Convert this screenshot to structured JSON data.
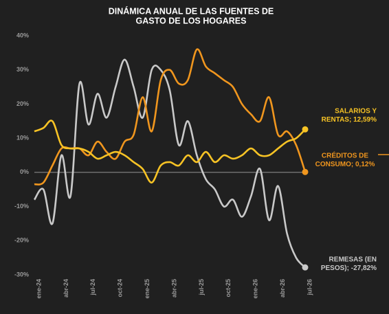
{
  "chart_data": {
    "type": "line",
    "title": [
      "DINÁMICA ANUAL DE LAS FUENTES DE",
      "GASTO DE LOS HOGARES"
    ],
    "categories": [
      "ene-24",
      null,
      null,
      "abr-24",
      null,
      null,
      "jul-24",
      null,
      null,
      "oct-24",
      null,
      null,
      "ene-25",
      null,
      null,
      "abr-25",
      null,
      null,
      "jul-25",
      null,
      null,
      "oct-25",
      null,
      null,
      "ene-26",
      null,
      null,
      "abr-26",
      null,
      null,
      "jul-26"
    ],
    "ylim": [
      -30,
      40
    ],
    "yticks": [
      {
        "value": -30,
        "label": "-30%"
      },
      {
        "value": -20,
        "label": "-20%"
      },
      {
        "value": -10,
        "label": "-10%"
      },
      {
        "value": 0,
        "label": "0%"
      },
      {
        "value": 10,
        "label": "10%"
      },
      {
        "value": 20,
        "label": "20%"
      },
      {
        "value": 30,
        "label": "30%"
      },
      {
        "value": 40,
        "label": "40%"
      }
    ],
    "series": [
      {
        "label": [
          "REMESAS (EN",
          "PESOS); -27,82%"
        ],
        "color": "#c9c9c9",
        "values": [
          -8,
          -5,
          -15,
          5,
          -7,
          26,
          14,
          23,
          16,
          25,
          33,
          25,
          16,
          30,
          30,
          24,
          8,
          15,
          5,
          -2,
          -5,
          -10,
          -8,
          -13,
          -7,
          1,
          -14,
          -4,
          -18,
          -25,
          -27.82
        ]
      },
      {
        "label": [
          "CRÉDITOS DE",
          "CONSUMO; 0,12%"
        ],
        "color": "#f0961e",
        "values": [
          -3.5,
          -3,
          2,
          7,
          7,
          7,
          5,
          9,
          6,
          4,
          9,
          11,
          22,
          12,
          27,
          30,
          26,
          27,
          36,
          31,
          29,
          27,
          25,
          20,
          17,
          15,
          22,
          11,
          12,
          8,
          0.12
        ]
      },
      {
        "label": [
          "SALARIOS Y",
          "RENTAS; 12,59%"
        ],
        "color": "#f7c325",
        "values": [
          12,
          13,
          15,
          8,
          7,
          7,
          6,
          4,
          5,
          6,
          5,
          3,
          1,
          -3,
          2,
          3,
          2,
          5,
          3,
          6,
          3,
          5,
          4,
          5,
          7,
          5,
          5,
          7,
          9,
          10,
          12.59
        ]
      }
    ]
  }
}
